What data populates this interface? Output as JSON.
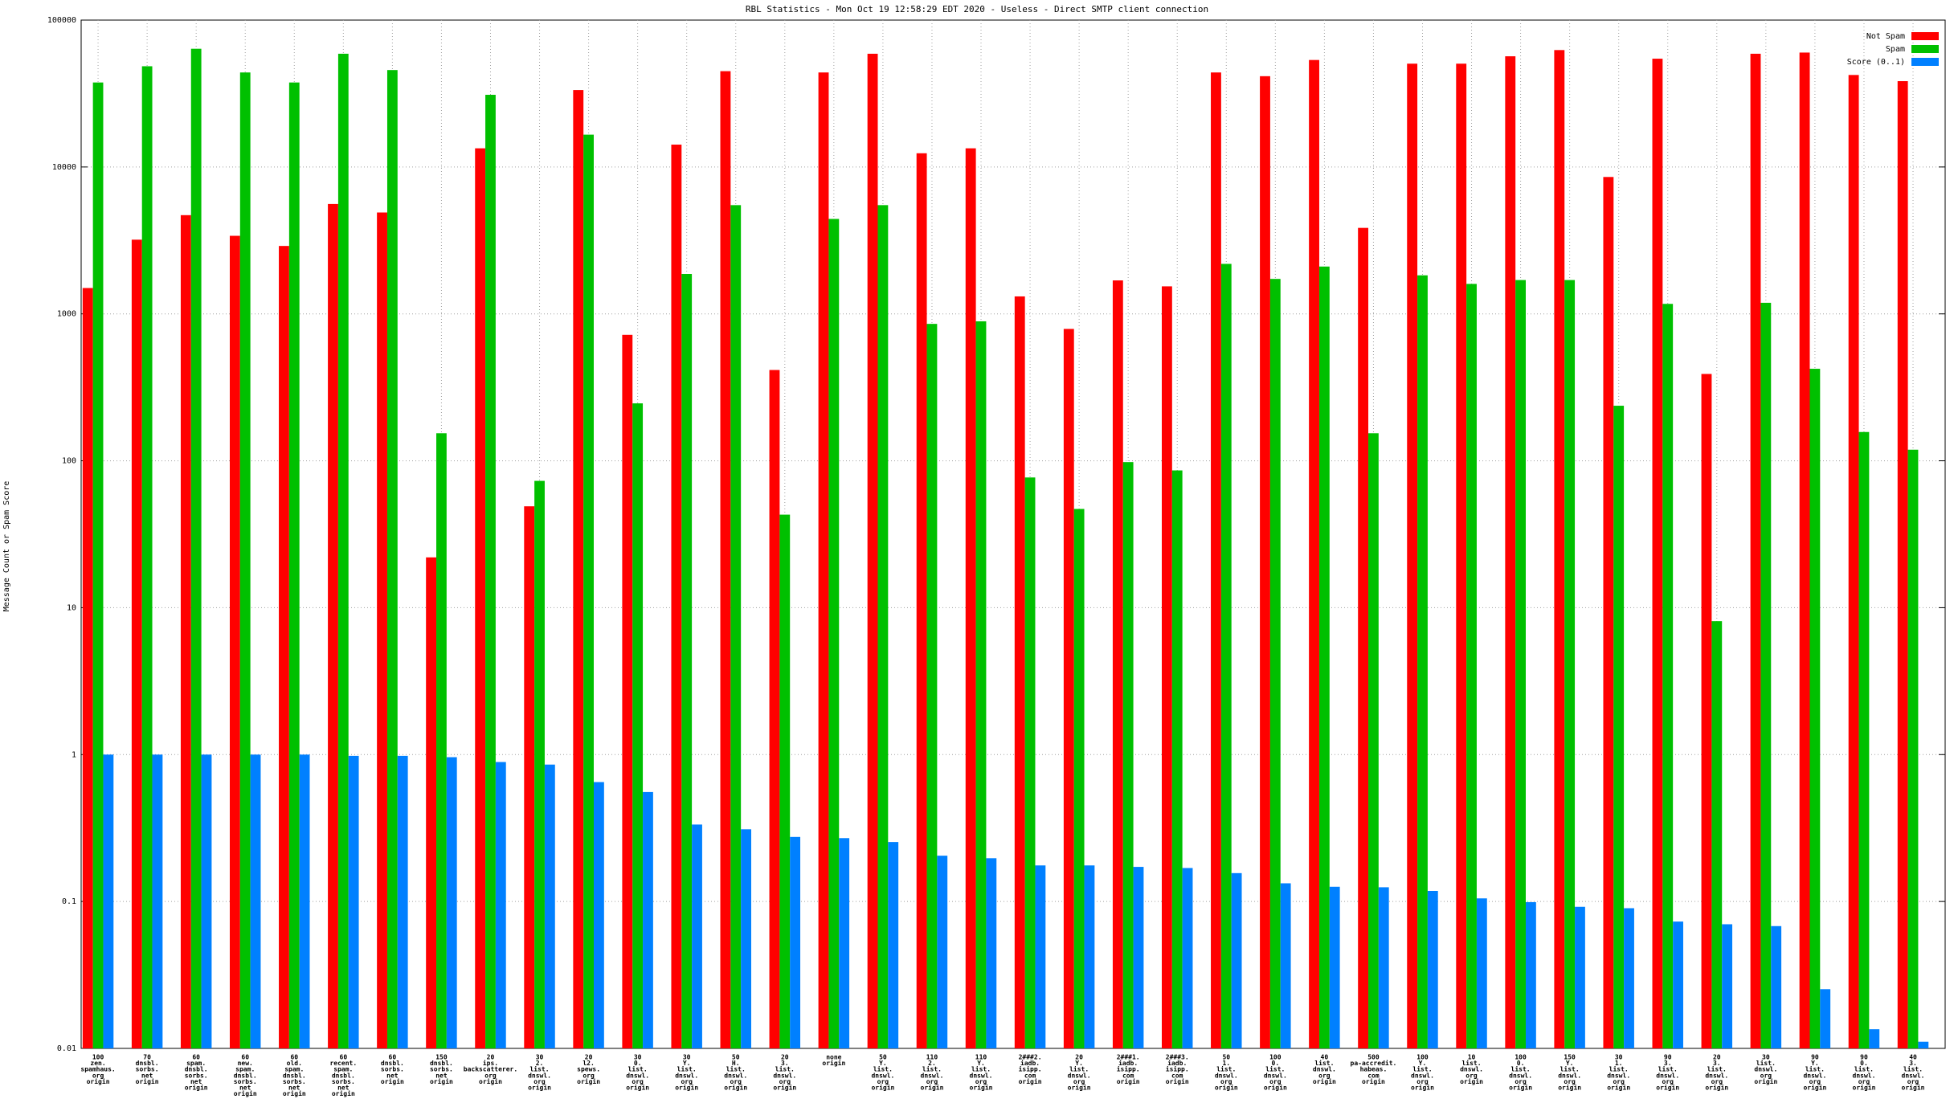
{
  "chart_data": {
    "type": "bar",
    "title": "RBL Statistics - Mon Oct 19 12:58:29 EDT 2020 - Useless - Direct SMTP client connection",
    "ylabel": "Message Count or Spam Score",
    "log_scale": true,
    "grid": true,
    "legend": "upper right",
    "ylim": [
      0.01,
      100000
    ],
    "yticks": [
      0.01,
      0.1,
      1,
      10,
      100,
      1000,
      10000,
      100000
    ],
    "categories": [
      [
        "100",
        "zen.",
        "spamhaus.",
        "org",
        "origin"
      ],
      [
        "70",
        "dnsbl.",
        "sorbs.",
        "net",
        "origin"
      ],
      [
        "60",
        "spam.",
        "dnsbl.",
        "sorbs.",
        "net",
        "origin"
      ],
      [
        "60",
        "new.",
        "spam.",
        "dnsbl.",
        "sorbs.",
        "net",
        "origin"
      ],
      [
        "60",
        "old.",
        "spam.",
        "dnsbl.",
        "sorbs.",
        "net",
        "origin"
      ],
      [
        "60",
        "recent.",
        "spam.",
        "dnsbl.",
        "sorbs.",
        "net",
        "origin"
      ],
      [
        "60",
        "dnsbl.",
        "sorbs.",
        "net",
        "origin"
      ],
      [
        "150",
        "dnsbl.",
        "sorbs.",
        "net",
        "origin"
      ],
      [
        "20",
        "ips.",
        "backscatterer.",
        "org",
        "origin"
      ],
      [
        "30",
        "2.",
        "list.",
        "dnswl.",
        "org",
        "origin"
      ],
      [
        "20",
        "l2.",
        "spews.",
        "org",
        "origin"
      ],
      [
        "30",
        "0.",
        "list.",
        "dnswl.",
        "org",
        "origin"
      ],
      [
        "30",
        "Y.",
        "list.",
        "dnswl.",
        "org",
        "origin"
      ],
      [
        "50",
        "H.",
        "list.",
        "dnswl.",
        "org",
        "origin"
      ],
      [
        "20",
        "3.",
        "list.",
        "dnswl.",
        "org",
        "origin"
      ],
      [
        "none",
        "origin"
      ],
      [
        "50",
        "Y.",
        "list.",
        "dnswl.",
        "org",
        "origin"
      ],
      [
        "110",
        "2.",
        "list.",
        "dnswl.",
        "org",
        "origin"
      ],
      [
        "110",
        "Y.",
        "list.",
        "dnswl.",
        "org",
        "origin"
      ],
      [
        "2###2.",
        "iadb.",
        "isipp.",
        "com",
        "origin"
      ],
      [
        "20",
        "Y.",
        "list.",
        "dnswl.",
        "org",
        "origin"
      ],
      [
        "2###1.",
        "iadb.",
        "isipp.",
        "com",
        "origin"
      ],
      [
        "2###3.",
        "iadb.",
        "isipp.",
        "com",
        "origin"
      ],
      [
        "50",
        "1.",
        "list.",
        "dnswl.",
        "org",
        "origin"
      ],
      [
        "100",
        "0.",
        "list.",
        "dnswl.",
        "org",
        "origin"
      ],
      [
        "40",
        "list.",
        "dnswl.",
        "org",
        "origin"
      ],
      [
        "500",
        "pa-accredit.",
        "habeas.",
        "com",
        "origin"
      ],
      [
        "100",
        "Y.",
        "list.",
        "dnswl.",
        "org",
        "origin"
      ],
      [
        "10",
        "list.",
        "dnswl.",
        "org",
        "origin"
      ],
      [
        "100",
        "0.",
        "list.",
        "dnswl.",
        "org",
        "origin"
      ],
      [
        "150",
        "Y.",
        "list.",
        "dnswl.",
        "org",
        "origin"
      ],
      [
        "30",
        "1.",
        "list.",
        "dnswl.",
        "org",
        "origin"
      ],
      [
        "90",
        "3.",
        "list.",
        "dnswl.",
        "org",
        "origin"
      ],
      [
        "20",
        "3.",
        "list.",
        "dnswl.",
        "org",
        "origin"
      ],
      [
        "30",
        "list.",
        "dnswl.",
        "org",
        "origin"
      ],
      [
        "90",
        "Y.",
        "list.",
        "dnswl.",
        "org",
        "origin"
      ],
      [
        "90",
        "0.",
        "list.",
        "dnswl.",
        "org",
        "origin"
      ],
      [
        "40",
        "3.",
        "list.",
        "dnswl.",
        "org",
        "origin"
      ]
    ],
    "series": [
      {
        "name": "Not Spam",
        "color": "#ff0000",
        "values": [
          1500,
          3200,
          4700,
          3400,
          2900,
          5600,
          4900,
          22,
          13400,
          49,
          33400,
          720,
          14200,
          44900,
          415,
          44000,
          59000,
          12400,
          13400,
          1315,
          790,
          1690,
          1540,
          44000,
          41500,
          53500,
          3850,
          50500,
          50500,
          56700,
          62500,
          8550,
          54600,
          390,
          59000,
          60100,
          42300,
          38400
        ]
      },
      {
        "name": "Spam",
        "color": "#00c000",
        "values": [
          37600,
          48500,
          63800,
          44000,
          37600,
          59000,
          45700,
          154,
          31000,
          73,
          16600,
          246,
          1870,
          5500,
          43,
          4430,
          5500,
          855,
          890,
          77,
          47,
          98,
          86,
          2190,
          1730,
          2100,
          154,
          1830,
          1600,
          1700,
          1700,
          237,
          1170,
          8.1,
          1190,
          423,
          157,
          119
        ]
      },
      {
        "name": "Score (0..1)",
        "color": "#0080ff",
        "values": [
          1.0,
          1.0,
          1.0,
          1.0,
          1.0,
          0.98,
          0.98,
          0.96,
          0.89,
          0.855,
          0.65,
          0.556,
          0.334,
          0.31,
          0.275,
          0.27,
          0.254,
          0.205,
          0.197,
          0.176,
          0.176,
          0.172,
          0.169,
          0.156,
          0.133,
          0.126,
          0.125,
          0.118,
          0.105,
          0.099,
          0.092,
          0.09,
          0.073,
          0.07,
          0.068,
          0.0253,
          0.0135,
          0.0111
        ]
      }
    ]
  }
}
